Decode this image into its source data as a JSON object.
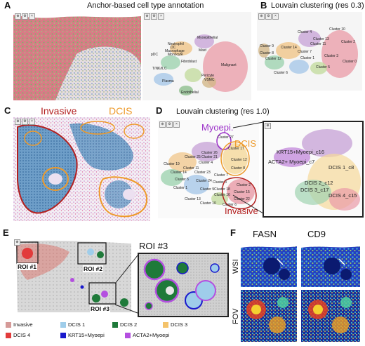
{
  "panels": {
    "A": {
      "letter": "A",
      "title": "Anchor-based cell type annotation",
      "clusters": [
        "Myoepithelial",
        "Neutrophil",
        "DC",
        "Macrophage",
        "Monocyte",
        "Mast",
        "pDC",
        "Fibroblast",
        "T/NK/ILC",
        "Pericyte",
        "VSMC",
        "Plasma",
        "Endothelial",
        "Malignant"
      ]
    },
    "B": {
      "letter": "B",
      "title": "Louvain clustering (res 0.3)",
      "clusters": [
        "Cluster 10",
        "Cluster 4",
        "Cluster 13",
        "Cluster 11",
        "Cluster 2",
        "Cluster 14",
        "Cluster 7",
        "Cluster 12",
        "Cluster 1",
        "Cluster 3",
        "Cluster 0",
        "Cluster 5",
        "Cluster 6",
        "Cluster 8",
        "Cluster 9"
      ]
    },
    "C": {
      "letter": "C",
      "label_invasive": "Invasive",
      "label_dcis": "DCIS"
    },
    "D": {
      "letter": "D",
      "title": "Louvain clustering (res 1.0)",
      "label_myoepi": "Myoepi.",
      "label_dcis": "DCIS",
      "label_invasive": "Invasive",
      "clusters": [
        "Cluster 27",
        "Cluster 26",
        "Cluster 21",
        "Cluster 19",
        "Cluster 14",
        "Cluster 4",
        "Cluster 17",
        "Cluster 11",
        "Cluster 12",
        "Cluster 7",
        "Cluster 23",
        "Cluster 5",
        "Cluster 24",
        "Cluster 8",
        "Cluster 1",
        "Cluster 13",
        "Cluster 3",
        "Cluster 9",
        "Cluster 2",
        "Cluster 15",
        "Cluster 18",
        "Cluster 16",
        "Cluster 10",
        "Cluster 6",
        "Cluster 25",
        "Cluster 22"
      ],
      "zoom_labels": [
        "KRT15+Myoepi_c16",
        "ACTA2+ Myoepi_c7",
        "DCIS 1_c8",
        "DCIS 2_c12",
        "DCIS 3_c17",
        "DCIS 4_c15"
      ]
    },
    "E": {
      "letter": "E",
      "roi1": "ROI #1",
      "roi2": "ROI #2",
      "roi3": "ROI #3",
      "zoom_title": "ROI #3"
    },
    "F": {
      "letter": "F",
      "col1": "FASN",
      "col2": "CD9",
      "row1": "WSI",
      "row2": "FOV"
    }
  },
  "legend": [
    {
      "label": "Invasive",
      "color": "#d59a98"
    },
    {
      "label": "DCIS 1",
      "color": "#9fcdea"
    },
    {
      "label": "DCIS 2",
      "color": "#1f7a3a"
    },
    {
      "label": "DCIS 3",
      "color": "#f4c36b"
    },
    {
      "label": "DCIS 4",
      "color": "#e23b3b"
    },
    {
      "label": "KRT15+Myoepi",
      "color": "#1a1acc"
    },
    {
      "label": "ACTA2+Myoepi",
      "color": "#b44fe0"
    }
  ],
  "colors": {
    "outline_red": "#b32020",
    "outline_orange": "#ee9a2a",
    "outline_purple": "#9b30c8",
    "dcis_text": "#ee9a2a",
    "myoepi_text": "#9b30c8"
  }
}
